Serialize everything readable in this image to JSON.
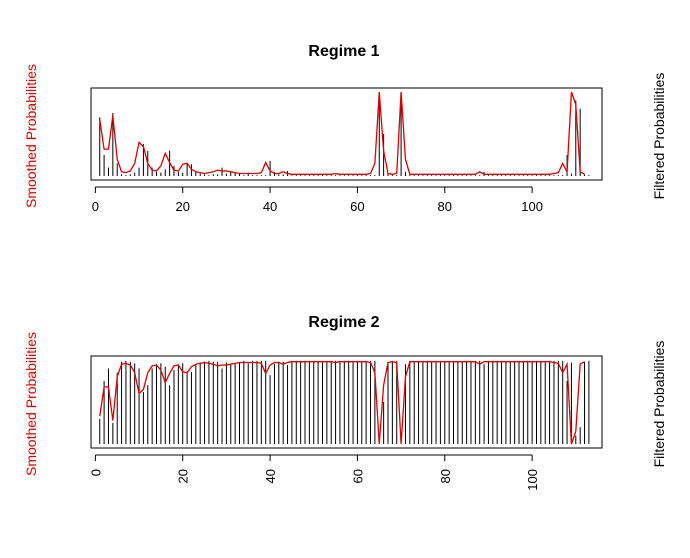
{
  "colors": {
    "smoothed": "#dd0000",
    "filtered": "#000000",
    "axis": "#000000"
  },
  "chart_data": [
    {
      "type": "line",
      "title": "Regime 1",
      "ylabel_left": "Smoothed Probabilities",
      "ylabel_right": "Filtered Probabilities",
      "xlim": [
        -1,
        116
      ],
      "ylim": [
        0,
        1
      ],
      "xticks": [
        0,
        20,
        40,
        60,
        80,
        100
      ],
      "tick_orientation": "horizontal",
      "grid": false,
      "series": [
        {
          "style": "lines",
          "values": [
            0.7,
            0.25,
            0.1,
            0.75,
            0.15,
            0.02,
            0.01,
            0.02,
            0.04,
            0.1,
            0.38,
            0.3,
            0.1,
            0.05,
            0.04,
            0.08,
            0.3,
            0.12,
            0.05,
            0.04,
            0.14,
            0.14,
            0.06,
            0.03,
            0.02,
            0.01,
            0.02,
            0.02,
            0.1,
            0.03,
            0.05,
            0.04,
            0.03,
            0.01,
            0.04,
            0.01,
            0.01,
            0.01,
            0.01,
            0.18,
            0.05,
            0.02,
            0.02,
            0.06,
            0.01,
            0.01,
            0.01,
            0.01,
            0.01,
            0.01,
            0.01,
            0.01,
            0.01,
            0.01,
            0.01,
            0.01,
            0.01,
            0.01,
            0.01,
            0.01,
            0.01,
            0.01,
            0.01,
            0.01,
            1.0,
            0.5,
            0.03,
            0.01,
            0.01,
            1.0,
            0.05,
            0.01,
            0.01,
            0.01,
            0.01,
            0.01,
            0.01,
            0.01,
            0.01,
            0.01,
            0.01,
            0.01,
            0.01,
            0.01,
            0.01,
            0.01,
            0.01,
            0.01,
            0.05,
            0.01,
            0.01,
            0.01,
            0.01,
            0.01,
            0.01,
            0.01,
            0.01,
            0.01,
            0.01,
            0.01,
            0.01,
            0.01,
            0.01,
            0.01,
            0.01,
            0.01,
            0.01,
            0.25,
            0.03,
            0.9,
            0.8,
            0.02,
            0.01
          ]
        },
        {
          "style": "line",
          "values": [
            0.67,
            0.32,
            0.32,
            0.72,
            0.2,
            0.05,
            0.04,
            0.06,
            0.15,
            0.4,
            0.35,
            0.15,
            0.07,
            0.06,
            0.12,
            0.27,
            0.16,
            0.07,
            0.06,
            0.14,
            0.15,
            0.08,
            0.05,
            0.04,
            0.03,
            0.04,
            0.05,
            0.07,
            0.06,
            0.06,
            0.05,
            0.04,
            0.03,
            0.03,
            0.03,
            0.03,
            0.03,
            0.04,
            0.16,
            0.06,
            0.03,
            0.03,
            0.05,
            0.03,
            0.02,
            0.02,
            0.02,
            0.02,
            0.02,
            0.02,
            0.02,
            0.02,
            0.02,
            0.02,
            0.03,
            0.02,
            0.02,
            0.02,
            0.02,
            0.02,
            0.02,
            0.02,
            0.03,
            0.15,
            1.0,
            0.3,
            0.03,
            0.02,
            0.03,
            1.0,
            0.2,
            0.02,
            0.02,
            0.02,
            0.02,
            0.02,
            0.02,
            0.02,
            0.02,
            0.02,
            0.02,
            0.02,
            0.02,
            0.02,
            0.02,
            0.02,
            0.02,
            0.05,
            0.02,
            0.02,
            0.02,
            0.02,
            0.02,
            0.02,
            0.02,
            0.02,
            0.02,
            0.02,
            0.02,
            0.02,
            0.02,
            0.02,
            0.02,
            0.02,
            0.03,
            0.04,
            0.15,
            0.05,
            1.0,
            0.85,
            0.05,
            0.02
          ]
        }
      ]
    },
    {
      "type": "line",
      "title": "Regime 2",
      "ylabel_left": "Smoothed Probabilities",
      "ylabel_right": "Filtered Probabilities",
      "xlim": [
        -1,
        116
      ],
      "ylim": [
        0,
        1
      ],
      "xticks": [
        0,
        20,
        40,
        60,
        80,
        100
      ],
      "tick_orientation": "vertical",
      "grid": false,
      "series": [
        {
          "style": "lines",
          "values": [
            0.3,
            0.75,
            0.9,
            0.25,
            0.85,
            0.98,
            0.99,
            0.98,
            0.96,
            0.9,
            0.62,
            0.7,
            0.9,
            0.95,
            0.96,
            0.92,
            0.7,
            0.88,
            0.95,
            0.96,
            0.86,
            0.86,
            0.94,
            0.97,
            0.98,
            0.99,
            0.98,
            0.98,
            0.9,
            0.97,
            0.95,
            0.96,
            0.97,
            0.99,
            0.96,
            0.99,
            0.99,
            0.99,
            0.99,
            0.82,
            0.95,
            0.98,
            0.98,
            0.94,
            0.99,
            0.99,
            0.99,
            0.99,
            0.99,
            0.99,
            0.99,
            0.99,
            0.99,
            0.99,
            0.99,
            0.99,
            0.99,
            0.99,
            0.99,
            0.99,
            0.99,
            0.99,
            0.99,
            0.99,
            0.0,
            0.5,
            0.97,
            0.99,
            0.99,
            0.0,
            0.95,
            0.99,
            0.99,
            0.99,
            0.99,
            0.99,
            0.99,
            0.99,
            0.99,
            0.99,
            0.99,
            0.99,
            0.99,
            0.99,
            0.99,
            0.99,
            0.99,
            0.99,
            0.95,
            0.99,
            0.99,
            0.99,
            0.99,
            0.99,
            0.99,
            0.99,
            0.99,
            0.99,
            0.99,
            0.99,
            0.99,
            0.99,
            0.99,
            0.99,
            0.99,
            0.99,
            0.99,
            0.75,
            0.97,
            0.1,
            0.2,
            0.98,
            0.99
          ]
        },
        {
          "style": "line",
          "values": [
            0.33,
            0.68,
            0.68,
            0.28,
            0.8,
            0.95,
            0.96,
            0.94,
            0.85,
            0.6,
            0.65,
            0.85,
            0.93,
            0.94,
            0.88,
            0.73,
            0.84,
            0.93,
            0.94,
            0.86,
            0.85,
            0.92,
            0.95,
            0.96,
            0.97,
            0.96,
            0.95,
            0.93,
            0.94,
            0.94,
            0.95,
            0.96,
            0.97,
            0.97,
            0.97,
            0.97,
            0.97,
            0.96,
            0.84,
            0.94,
            0.97,
            0.97,
            0.95,
            0.97,
            0.98,
            0.98,
            0.98,
            0.98,
            0.98,
            0.98,
            0.98,
            0.98,
            0.98,
            0.98,
            0.97,
            0.98,
            0.98,
            0.98,
            0.98,
            0.98,
            0.98,
            0.98,
            0.97,
            0.85,
            0.0,
            0.7,
            0.97,
            0.98,
            0.97,
            0.0,
            0.8,
            0.98,
            0.98,
            0.98,
            0.98,
            0.98,
            0.98,
            0.98,
            0.98,
            0.98,
            0.98,
            0.98,
            0.98,
            0.98,
            0.98,
            0.98,
            0.98,
            0.95,
            0.98,
            0.98,
            0.98,
            0.98,
            0.98,
            0.98,
            0.98,
            0.98,
            0.98,
            0.98,
            0.98,
            0.98,
            0.98,
            0.98,
            0.98,
            0.98,
            0.97,
            0.96,
            0.85,
            0.95,
            0.0,
            0.15,
            0.95,
            0.98
          ]
        }
      ]
    }
  ]
}
